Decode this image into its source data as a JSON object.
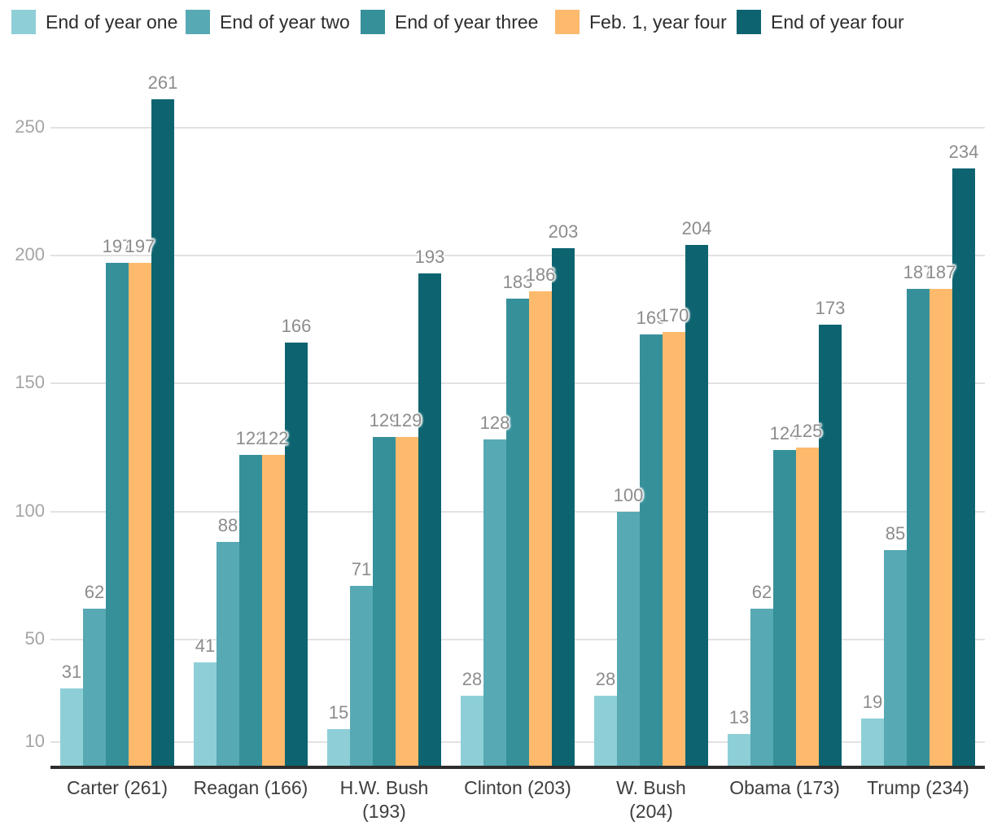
{
  "chart_data": {
    "type": "bar",
    "title": "",
    "categories": [
      "Carter (261)",
      "Reagan (166)",
      "H.W. Bush\n(193)",
      "Clinton (203)",
      "W. Bush\n(204)",
      "Obama (173)",
      "Trump (234)"
    ],
    "series": [
      {
        "name": "End of year one",
        "color": "#8ecfd7",
        "values": [
          31,
          41,
          15,
          28,
          28,
          13,
          19
        ]
      },
      {
        "name": "End of year two",
        "color": "#57a9b3",
        "values": [
          62,
          88,
          71,
          128,
          100,
          62,
          85
        ]
      },
      {
        "name": "End of year three",
        "color": "#36909a",
        "values": [
          197,
          122,
          129,
          183,
          169,
          124,
          187
        ]
      },
      {
        "name": "Feb. 1, year four",
        "color": "#fdba6d",
        "values": [
          197,
          122,
          129,
          186,
          170,
          125,
          187
        ]
      },
      {
        "name": "End of year four",
        "color": "#0d6470",
        "values": [
          261,
          166,
          193,
          203,
          204,
          173,
          234
        ]
      }
    ],
    "y_ticks": [
      10,
      50,
      100,
      150,
      200,
      250
    ],
    "ylim": [
      0,
      261
    ],
    "grid": "horizontal",
    "legend_position": "top",
    "value_labels": "above-bars",
    "colors": {
      "grid": "#e2e2e2",
      "axis": "#2d2d2d",
      "value_label": "#8c8c8c",
      "y_label": "#a5a5a5",
      "x_label": "#3e3e3e",
      "legend_text": "#2d2d2d",
      "background": "#ffffff"
    }
  }
}
